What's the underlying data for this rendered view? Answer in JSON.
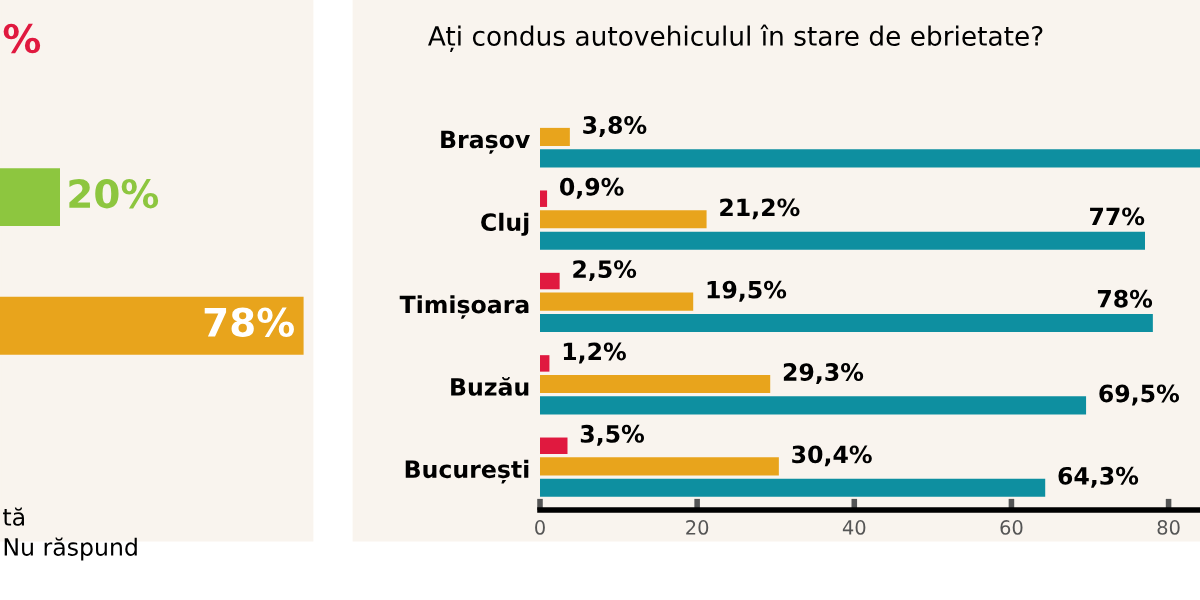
{
  "chart_data": [
    {
      "type": "bar",
      "orientation": "horizontal",
      "categories": [
        null,
        null
      ],
      "xlim": [
        0,
        80
      ],
      "tick_labels": false,
      "grid": false,
      "values": [
        20,
        78
      ],
      "colors": [
        "#8dc63f",
        "#e8a41c"
      ],
      "value_labels": [
        "20%",
        "78%"
      ],
      "annotations": [
        "%",
        "tă",
        "Nu răspund"
      ]
    },
    {
      "type": "bar",
      "orientation": "horizontal",
      "title": "Ați condus autovehiculul în stare de ebrietate?",
      "categories": [
        "Brașov",
        "Cluj",
        "Timișoara",
        "Buzău",
        "București"
      ],
      "xlim": [
        0,
        84
      ],
      "xticks": [
        0,
        20,
        40,
        60,
        80
      ],
      "grid": false,
      "series": [
        {
          "color": "#e0193f",
          "values": [
            null,
            0.9,
            2.5,
            1.2,
            3.5
          ],
          "value_labels": [
            null,
            "0,9%",
            "2,5%",
            "1,2%",
            "3,5%"
          ]
        },
        {
          "color": "#e8a41c",
          "values": [
            3.8,
            21.2,
            19.5,
            29.3,
            30.4
          ],
          "value_labels": [
            "3,8%",
            "21,2%",
            "19,5%",
            "29,3%",
            "30,4%"
          ]
        },
        {
          "color": "#0e8fa0",
          "values": [
            84,
            77,
            78,
            69.5,
            64.3
          ],
          "value_labels": [
            null,
            "77%",
            "78%",
            "69,5%",
            "64,3%"
          ]
        }
      ]
    }
  ]
}
